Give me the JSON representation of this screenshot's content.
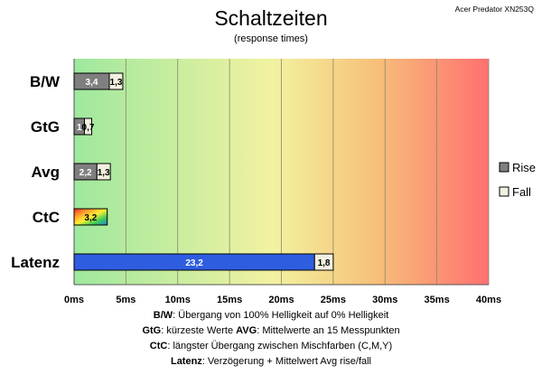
{
  "header": {
    "title": "Schaltzeiten",
    "subtitle": "(response times)",
    "model": "Acer Predator XN253Q"
  },
  "legend": {
    "rise": "Rise",
    "fall": "Fall"
  },
  "colors": {
    "rise": "#7f7f7f",
    "fall": "#f2f0e0",
    "latency": "#2e5de0",
    "gradient_left": "#9ee89e",
    "gradient_mid": "#f2f2a0",
    "gradient_right": "#ff7070"
  },
  "notes": [
    {
      "label": "B/W",
      "text": ":  Übergang von 100% Helligkeit auf 0% Helligkeit"
    },
    {
      "label": "GtG",
      "text": ": kürzeste  Werte",
      "label2": "AVG",
      "text2": ": Mittelwerte  an 15 Messpunkten"
    },
    {
      "label": "CtC",
      "text": ": längster Übergang  zwischen Mischfarben  (C,M,Y)"
    },
    {
      "label": "Latenz",
      "text": ": Verzögerung  + Mittelwert  Avg rise/fall"
    }
  ],
  "chart_data": {
    "type": "bar",
    "orientation": "horizontal",
    "stacked": true,
    "categories": [
      "B/W",
      "GtG",
      "Avg",
      "CtC",
      "Latenz"
    ],
    "series": [
      {
        "name": "Rise",
        "values": [
          3.4,
          1.0,
          2.2,
          3.2,
          23.2
        ],
        "labels": [
          "3,4",
          "1",
          "2,2",
          "3,2",
          "23,2"
        ]
      },
      {
        "name": "Fall",
        "values": [
          1.3,
          0.7,
          1.3,
          0,
          1.8
        ],
        "labels": [
          "1,3",
          "0,7",
          "1,3",
          "",
          "1,8"
        ]
      }
    ],
    "x_ticks": [
      "0ms",
      "5ms",
      "10ms",
      "15ms",
      "20ms",
      "25ms",
      "30ms",
      "35ms",
      "40ms"
    ],
    "xlim": [
      0,
      40
    ],
    "grid": true,
    "legend_position": "right"
  }
}
